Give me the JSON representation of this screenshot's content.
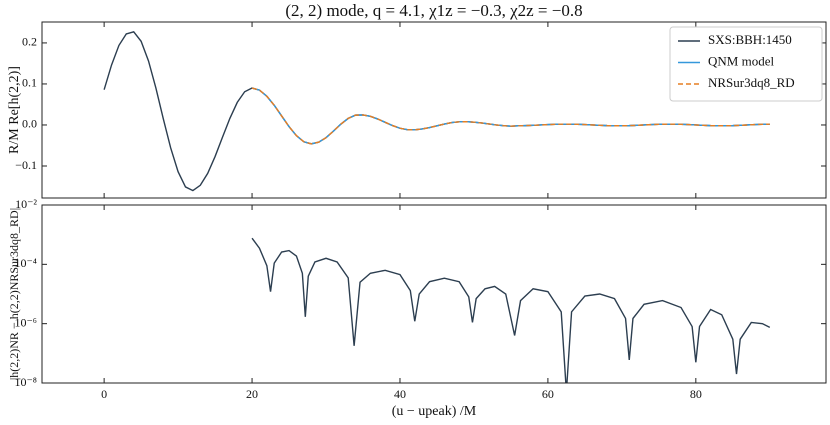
{
  "chart_data": [
    {
      "type": "line",
      "title": "(2, 2) mode, q = 4.1, χ1z = −0.3, χ2z = −0.8",
      "ylabel": "R/M Re[h(2,2)]",
      "x": [
        0,
        1,
        2,
        3,
        4,
        5,
        6,
        7,
        8,
        9,
        10,
        11,
        12,
        13,
        14,
        15,
        16,
        17,
        18,
        19,
        20,
        21,
        22,
        23,
        24,
        25,
        26,
        27,
        28,
        29,
        30,
        31,
        32,
        33,
        34,
        35,
        36,
        37,
        38,
        39,
        40,
        41,
        42,
        43,
        44,
        45,
        46,
        47,
        48,
        49,
        50,
        51,
        52,
        53,
        54,
        55,
        56,
        57,
        58,
        59,
        60,
        61,
        62,
        63,
        64,
        65,
        66,
        67,
        68,
        69,
        70,
        71,
        72,
        73,
        74,
        75,
        76,
        77,
        78,
        79,
        80,
        81,
        82,
        83,
        84,
        85,
        86,
        87,
        88,
        89,
        90
      ],
      "series": [
        {
          "name": "SXS:BBH:1450",
          "color": "#2c3e50",
          "linestyle": "solid",
          "values": [
            0.086,
            0.146,
            0.194,
            0.222,
            0.227,
            0.204,
            0.156,
            0.09,
            0.015,
            -0.056,
            -0.114,
            -0.151,
            -0.16,
            -0.147,
            -0.118,
            -0.077,
            -0.03,
            0.016,
            0.055,
            0.081,
            0.09,
            0.085,
            0.07,
            0.048,
            0.022,
            -0.004,
            -0.026,
            -0.041,
            -0.046,
            -0.042,
            -0.031,
            -0.015,
            0.002,
            0.016,
            0.024,
            0.0245,
            0.021,
            0.0145,
            0.0065,
            -0.0015,
            -0.008,
            -0.0115,
            -0.0118,
            -0.0098,
            -0.0063,
            -0.002,
            0.0023,
            0.0058,
            0.0078,
            0.0079,
            0.0068,
            0.0049,
            0.0025,
            0.0001,
            -0.0018,
            -0.0029,
            -0.002,
            -0.0016,
            -0.0009,
            0,
            0.0009,
            0.0016,
            0.0019,
            0.0019,
            0.0016,
            0.0009,
            0,
            -0.0009,
            -0.0016,
            -0.0019,
            -0.0019,
            -0.0016,
            -0.0009,
            0,
            0.0009,
            0.0016,
            0.0019,
            0.0019,
            0.0016,
            0.0009,
            0,
            -0.0009,
            -0.0016,
            -0.0019,
            -0.0019,
            -0.0016,
            -0.0009,
            0,
            0.0009,
            0.0016,
            0.0019
          ]
        },
        {
          "name": "QNM model",
          "color": "#3498db",
          "linestyle": "solid",
          "values": [
            null,
            null,
            null,
            null,
            null,
            null,
            null,
            null,
            null,
            null,
            null,
            null,
            null,
            null,
            null,
            null,
            null,
            null,
            null,
            null,
            0.09,
            0.085,
            0.07,
            0.048,
            0.022,
            -0.004,
            -0.026,
            -0.041,
            -0.046,
            -0.042,
            -0.031,
            -0.015,
            0.002,
            0.016,
            0.024,
            0.0245,
            0.021,
            0.0145,
            0.0065,
            -0.0015,
            -0.008,
            -0.0115,
            -0.0118,
            -0.0098,
            -0.0063,
            -0.002,
            0.0023,
            0.0058,
            0.0078,
            0.0079,
            0.0068,
            0.0049,
            0.0025,
            0.0001,
            -0.0018,
            -0.0029,
            -0.002,
            -0.0016,
            -0.0009,
            0,
            0.0009,
            0.0016,
            0.0019,
            0.0019,
            0.0016,
            0.0009,
            0,
            -0.0009,
            -0.0016,
            -0.0019,
            -0.0019,
            -0.0016,
            -0.0009,
            0,
            0.0009,
            0.0016,
            0.0019,
            0.0019,
            0.0016,
            0.0009,
            0,
            -0.0009,
            -0.0016,
            -0.0019,
            -0.0019,
            -0.0016,
            -0.0009,
            0,
            0.0009,
            0.0016,
            0.0019
          ]
        },
        {
          "name": "NRSur3dq8_RD",
          "color": "#e67e22",
          "linestyle": "dashed",
          "values": [
            null,
            null,
            null,
            null,
            null,
            null,
            null,
            null,
            null,
            null,
            null,
            null,
            null,
            null,
            null,
            null,
            null,
            null,
            null,
            null,
            0.09,
            0.085,
            0.07,
            0.048,
            0.022,
            -0.004,
            -0.026,
            -0.041,
            -0.046,
            -0.042,
            -0.031,
            -0.015,
            0.002,
            0.016,
            0.024,
            0.0245,
            0.021,
            0.0145,
            0.0065,
            -0.0015,
            -0.008,
            -0.0115,
            -0.0118,
            -0.0098,
            -0.0063,
            -0.002,
            0.0023,
            0.0058,
            0.0078,
            0.0079,
            0.0068,
            0.0049,
            0.0025,
            0.0001,
            -0.0018,
            -0.0029,
            -0.002,
            -0.0016,
            -0.0009,
            0,
            0.0009,
            0.0016,
            0.0019,
            0.0019,
            0.0016,
            0.0009,
            0,
            -0.0009,
            -0.0016,
            -0.0019,
            -0.0019,
            -0.0016,
            -0.0009,
            0,
            0.0009,
            0.0016,
            0.0019,
            0.0019,
            0.0016,
            0.0009,
            0,
            -0.0009,
            -0.0016,
            -0.0019,
            -0.0019,
            -0.0016,
            -0.0009,
            0,
            0.0009,
            0.0016,
            0.0019
          ]
        }
      ],
      "xlim": [
        -8.4,
        97.6
      ],
      "ylim": [
        -0.178,
        0.251
      ],
      "xticks": [
        0,
        20,
        40,
        60,
        80
      ],
      "yticks": [
        {
          "value": -0.1,
          "label": "−0.1"
        },
        {
          "value": 0,
          "label": "0.0"
        },
        0.1,
        0.2
      ],
      "legend": "upper right"
    },
    {
      "type": "line",
      "ylabel": "|h(2,2)NR − h(2,2)NRSur3dq8_RD|",
      "xlabel": "(u − upeak) /M",
      "x": [
        20,
        21,
        22,
        22.5,
        23,
        24,
        25,
        26,
        26.8,
        27.2,
        27.6,
        28.5,
        30,
        31.5,
        33,
        33.8,
        34.6,
        36,
        38,
        40,
        41.4,
        42,
        42.6,
        44,
        46,
        48,
        49.3,
        49.8,
        50.3,
        51.5,
        52.8,
        54.3,
        55.5,
        56.3,
        58,
        60,
        61.8,
        62.5,
        63.2,
        65,
        67,
        69,
        70.5,
        71,
        71.5,
        73,
        75.5,
        78,
        79.5,
        80,
        80.5,
        82,
        83.5,
        85,
        85.5,
        86,
        87.5,
        89,
        90
      ],
      "series": [
        {
          "color": "#2c3e50",
          "values": [
            0.00076,
            0.00035,
            9e-05,
            1.2e-05,
            0.00011,
            0.00026,
            0.00029,
            0.00019,
            5e-05,
            1.7e-06,
            4e-05,
            0.00012,
            0.00016,
            0.00012,
            3.5e-05,
            1.8e-07,
            2.5e-05,
            5e-05,
            6.3e-05,
            4.5e-05,
            1.3e-05,
            1.2e-06,
            1e-05,
            2.6e-05,
            3.4e-05,
            2.6e-05,
            8e-06,
            1.1e-06,
            7e-06,
            1.5e-05,
            1.8e-05,
            1e-05,
            4e-07,
            6e-06,
            1.5e-05,
            1.2e-05,
            2.5e-06,
            5e-09,
            2.5e-06,
            8.5e-06,
            1e-05,
            7e-06,
            1.5e-06,
            6e-08,
            1.5e-06,
            4.5e-06,
            6e-06,
            3.5e-06,
            8e-07,
            5e-08,
            8e-07,
            3e-06,
            2e-06,
            3e-07,
            2e-08,
            3e-07,
            1.1e-06,
            1e-06,
            7.5e-07
          ]
        }
      ],
      "xlim": [
        -8.4,
        97.6
      ],
      "ylim": [
        1e-08,
        0.01
      ],
      "yscale": "log",
      "xticks": [
        0,
        20,
        40,
        60,
        80
      ],
      "yticks": [
        {
          "value": 1e-08,
          "label": "10⁻⁸"
        },
        {
          "value": 1e-06,
          "label": "10⁻⁶"
        },
        {
          "value": 0.0001,
          "label": "10⁻⁴"
        },
        {
          "value": 0.01,
          "label": "10⁻²"
        }
      ]
    }
  ]
}
